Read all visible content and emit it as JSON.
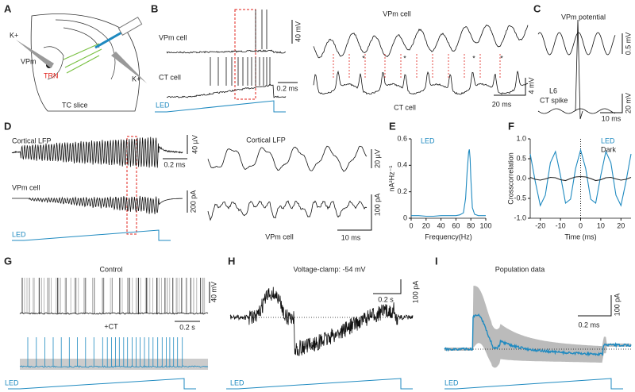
{
  "panels": {
    "A": {
      "letter": "A",
      "k1": "K+",
      "vpm": "VPm",
      "trn": "TRN",
      "slice": "TC slice",
      "k2": "K+"
    },
    "B": {
      "letter": "B",
      "vpm": "VPm cell",
      "ct": "CT cell",
      "led": "LED",
      "mv": "40 mV",
      "ms": "0.2 ms",
      "vpm2": "VPm cell",
      "ct2": "CT cell",
      "mv2": "4 mV",
      "ms2": "20 ms",
      "asterisk": "*"
    },
    "C": {
      "letter": "C",
      "title": "VPm potential",
      "mv": "0.5 mV",
      "l6": "L6",
      "ct": "CT spike",
      "mv2": "20 mV",
      "ms": "10 ms"
    },
    "D": {
      "letter": "D",
      "lfp": "Cortical LFP",
      "vpm": "VPm cell",
      "uv": "40 µV",
      "ms": "0.2 ms",
      "pa": "200 pA",
      "led": "LED",
      "lfp2": "Cortical LFP",
      "uv2": "20 µV",
      "pa2": "100 pA",
      "vpm2": "VPm cell",
      "ms2": "10 ms"
    },
    "G": {
      "letter": "G",
      "control": "Control",
      "mv": "40 mV",
      "ct": "+CT",
      "s": "0.2 s",
      "led": "LED"
    },
    "H": {
      "letter": "H",
      "title": "Voltage-clamp: -54 mV",
      "pa": "100 pA",
      "s": "0.2 s",
      "led": "LED"
    },
    "I": {
      "letter": "I",
      "title": "Population data",
      "pa": "100 pA",
      "ms": "0.2 ms",
      "led": "LED"
    }
  },
  "chart_data": [
    {
      "type": "line",
      "letter": "E",
      "ylabel": "nA²Hz⁻¹",
      "xlabel": "Frequency(Hz)",
      "x": [
        0,
        10,
        20,
        30,
        40,
        50,
        60,
        65,
        70,
        73,
        75,
        77,
        78,
        79,
        80,
        82,
        85,
        90,
        100
      ],
      "series": [
        {
          "name": "LED",
          "color": "#1f8ac0",
          "values": [
            0.02,
            0.02,
            0.015,
            0.015,
            0.02,
            0.02,
            0.02,
            0.025,
            0.04,
            0.15,
            0.35,
            0.5,
            0.52,
            0.45,
            0.3,
            0.08,
            0.03,
            0.02,
            0.02
          ]
        }
      ],
      "xlim": [
        0,
        100
      ],
      "xticks": [
        0,
        20,
        40,
        60,
        80,
        100
      ],
      "ylim": [
        0,
        0.6
      ],
      "yticks": [
        0,
        0.2,
        0.4,
        0.6
      ]
    },
    {
      "type": "line",
      "letter": "F",
      "ylabel": "Crosscorrelation",
      "xlabel": "Time (ms)",
      "x": [
        -25,
        -22.5,
        -20,
        -17.5,
        -15,
        -12.5,
        -10,
        -7.5,
        -5,
        -2.5,
        0,
        2.5,
        5,
        7.5,
        10,
        12.5,
        15,
        17.5,
        20,
        22.5,
        25
      ],
      "series": [
        {
          "name": "LED",
          "color": "#1f8ac0",
          "values": [
            0.62,
            -0.08,
            -0.68,
            -0.42,
            0.4,
            0.68,
            0.08,
            -0.62,
            -0.52,
            0.25,
            0.72,
            0.25,
            -0.52,
            -0.62,
            0.08,
            0.68,
            0.4,
            -0.42,
            -0.68,
            -0.08,
            0.62
          ]
        },
        {
          "name": "Dark",
          "color": "#222222",
          "values": [
            0.03,
            -0.02,
            -0.04,
            -0.01,
            0.03,
            0.02,
            -0.03,
            -0.05,
            0,
            0.04,
            0.05,
            0.04,
            0,
            -0.05,
            -0.03,
            0.02,
            0.03,
            -0.01,
            -0.04,
            -0.02,
            0.03
          ]
        }
      ],
      "xlim": [
        -25,
        25
      ],
      "xticks": [
        -20,
        -10,
        0,
        10,
        20
      ],
      "ylim": [
        -1,
        1
      ],
      "yticks": [
        {
          "value": -1,
          "label": "-1.0"
        },
        -0.5,
        {
          "value": 0,
          "label": "0.0"
        },
        0.5,
        {
          "value": 1,
          "label": "1.0"
        }
      ]
    }
  ]
}
